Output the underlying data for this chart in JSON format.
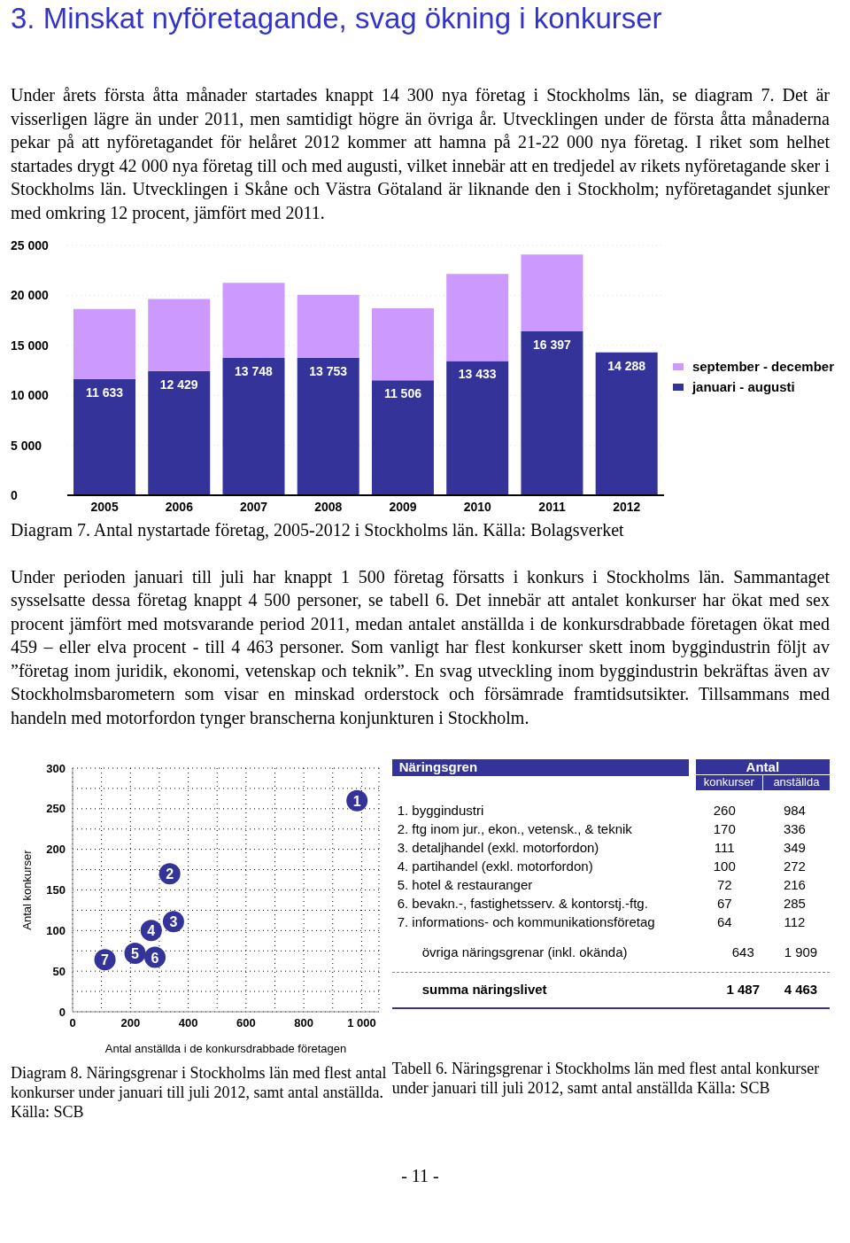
{
  "chart_data": [
    {
      "type": "bar",
      "title": "3. Minskat nyföretagande, svag ökning i konkurser",
      "categories": [
        "2005",
        "2006",
        "2007",
        "2008",
        "2009",
        "2010",
        "2011",
        "2012"
      ],
      "stacked": true,
      "series": [
        {
          "name": "januari - augusti",
          "color": "#333399",
          "values": [
            11633,
            12429,
            13748,
            13753,
            11506,
            13433,
            16397,
            14288
          ],
          "value_labels": [
            "11 633",
            "12 429",
            "13 748",
            "13 753",
            "11 506",
            "13 433",
            "16 397",
            "14 288"
          ]
        },
        {
          "name": "september - december",
          "color": "#cc99ff",
          "values": [
            7000,
            7200,
            7500,
            6300,
            7200,
            8700,
            7700,
            null
          ]
        }
      ],
      "ylim": [
        0,
        25000
      ],
      "yticks": [
        {
          "value": 0,
          "label": "0"
        },
        {
          "value": 5000,
          "label": "5 000"
        },
        {
          "value": 10000,
          "label": "10 000"
        },
        {
          "value": 15000,
          "label": "15 000"
        },
        {
          "value": 20000,
          "label": "20 000"
        },
        {
          "value": 25000,
          "label": "25 000"
        }
      ],
      "grid": "y",
      "legend": "right",
      "annotations": [
        "Under årets första åtta månader startades knappt 14 300 nya företag i Stockholms län, se diagram 7. Det är visserligen lägre än under 2011, men samtidigt högre än övriga år. Utvecklingen under de första åtta månaderna pekar på att nyföretagandet för helåret 2012 kommer att hamna på 21-22 000 nya företag. I riket som helhet startades drygt 42 000 nya företag till och med augusti, vilket innebär att en tredjedel av rikets nyföretagande sker i Stockholms län. Utvecklingen i Skåne och Västra Götaland är liknande den i Stockholm; nyföretagandet sjunker med omkring 12 procent, jämfört med 2011.",
        "Diagram 7. Antal nystartade företag, 2005-2012 i Stockholms län. Källa: Bolagsverket",
        "Under perioden januari till juli har knappt 1 500 företag försatts i konkurs i Stockholms län. Sammantaget sysselsatte dessa företag knappt 4 500 personer, se tabell 6. Det innebär att antalet konkurser har ökat med sex procent jämfört med motsvarande period 2011, medan antalet anställda i de konkursdrabbade företagen ökat med 459 – eller elva procent - till 4 463 personer. Som vanligt har flest konkurser skett inom byggindustrin följt av ”företag inom juridik, ekonomi, vetenskap och teknik”. En svag utveckling inom byggindustrin bekräftas även av Stockholmsbarometern som visar en minskad orderstock och försämrade framtidsutsikter. Tillsammans med handeln med motorfordon tynger branscherna konjunkturen i Stockholm."
      ]
    },
    {
      "type": "scatter",
      "xlabel": "Antal anställda i de konkursdrabbade företagen",
      "ylabel": "Antal konkurser",
      "marker": "circle",
      "grid": true,
      "series": [
        {
          "color": "#333399",
          "x": [
            984,
            336,
            349,
            272,
            216,
            285,
            112
          ],
          "values": [
            260,
            170,
            111,
            100,
            72,
            67,
            64
          ]
        }
      ],
      "xlim": [
        0,
        1060
      ],
      "xticks": [
        0,
        {
          "value": 100,
          "label": null
        },
        200,
        {
          "value": 300,
          "label": null
        },
        400,
        {
          "value": 500,
          "label": null
        },
        600,
        {
          "value": 700,
          "label": null
        },
        800,
        {
          "value": 900,
          "label": null
        },
        {
          "value": 1000,
          "label": "1 000"
        }
      ],
      "ylim": [
        0,
        300
      ],
      "yticks": [
        0,
        {
          "value": 25,
          "label": null
        },
        50,
        {
          "value": 75,
          "label": null
        },
        100,
        {
          "value": 125,
          "label": null
        },
        150,
        {
          "value": 175,
          "label": null
        },
        200,
        {
          "value": 225,
          "label": null
        },
        250,
        {
          "value": 275,
          "label": null
        },
        300
      ],
      "annotations": [
        "Diagram 8. Näringsgrenar i Stockholms län med flest antal konkurser under januari till juli 2012, samt antal anställda. Källa: SCB",
        {
          "text": "1",
          "x": 984,
          "y": 260
        },
        {
          "text": "2",
          "x": 336,
          "y": 170
        },
        {
          "text": "3",
          "x": 349,
          "y": 111
        },
        {
          "text": "4",
          "x": 272,
          "y": 100
        },
        {
          "text": "5",
          "x": 216,
          "y": 72
        },
        {
          "text": "6",
          "x": 285,
          "y": 67
        },
        {
          "text": "7",
          "x": 112,
          "y": 64
        }
      ]
    },
    {
      "type": "other",
      "title": "Näringsgren",
      "legend_title": "Antal",
      "categories": [
        "1. byggindustri",
        "2. ftg inom jur., ekon., vetensk., & teknik",
        "3. detaljhandel (exkl. motorfordon)",
        "4. partihandel (exkl. motorfordon)",
        "5. hotel & restauranger",
        "6. bevakn.-, fastighetsserv. & kontorstj.-ftg.",
        "7. informations- och kommunikationsföretag",
        "övriga näringsgrenar (inkl. okända)",
        "summa näringslivet"
      ],
      "series": [
        {
          "name": "konkurser",
          "values": [
            260,
            170,
            111,
            100,
            72,
            67,
            64,
            643,
            1487
          ]
        },
        {
          "name": "anställda",
          "values": [
            984,
            336,
            349,
            272,
            216,
            285,
            112,
            1909,
            4463
          ]
        }
      ],
      "data_labels": true,
      "annotations": [
        "Tabell 6. Näringsgrenar i Stockholms län med flest antal konkurser under januari till juli 2012, samt antal anställda Källa: SCB",
        "- 11 -"
      ]
    }
  ]
}
